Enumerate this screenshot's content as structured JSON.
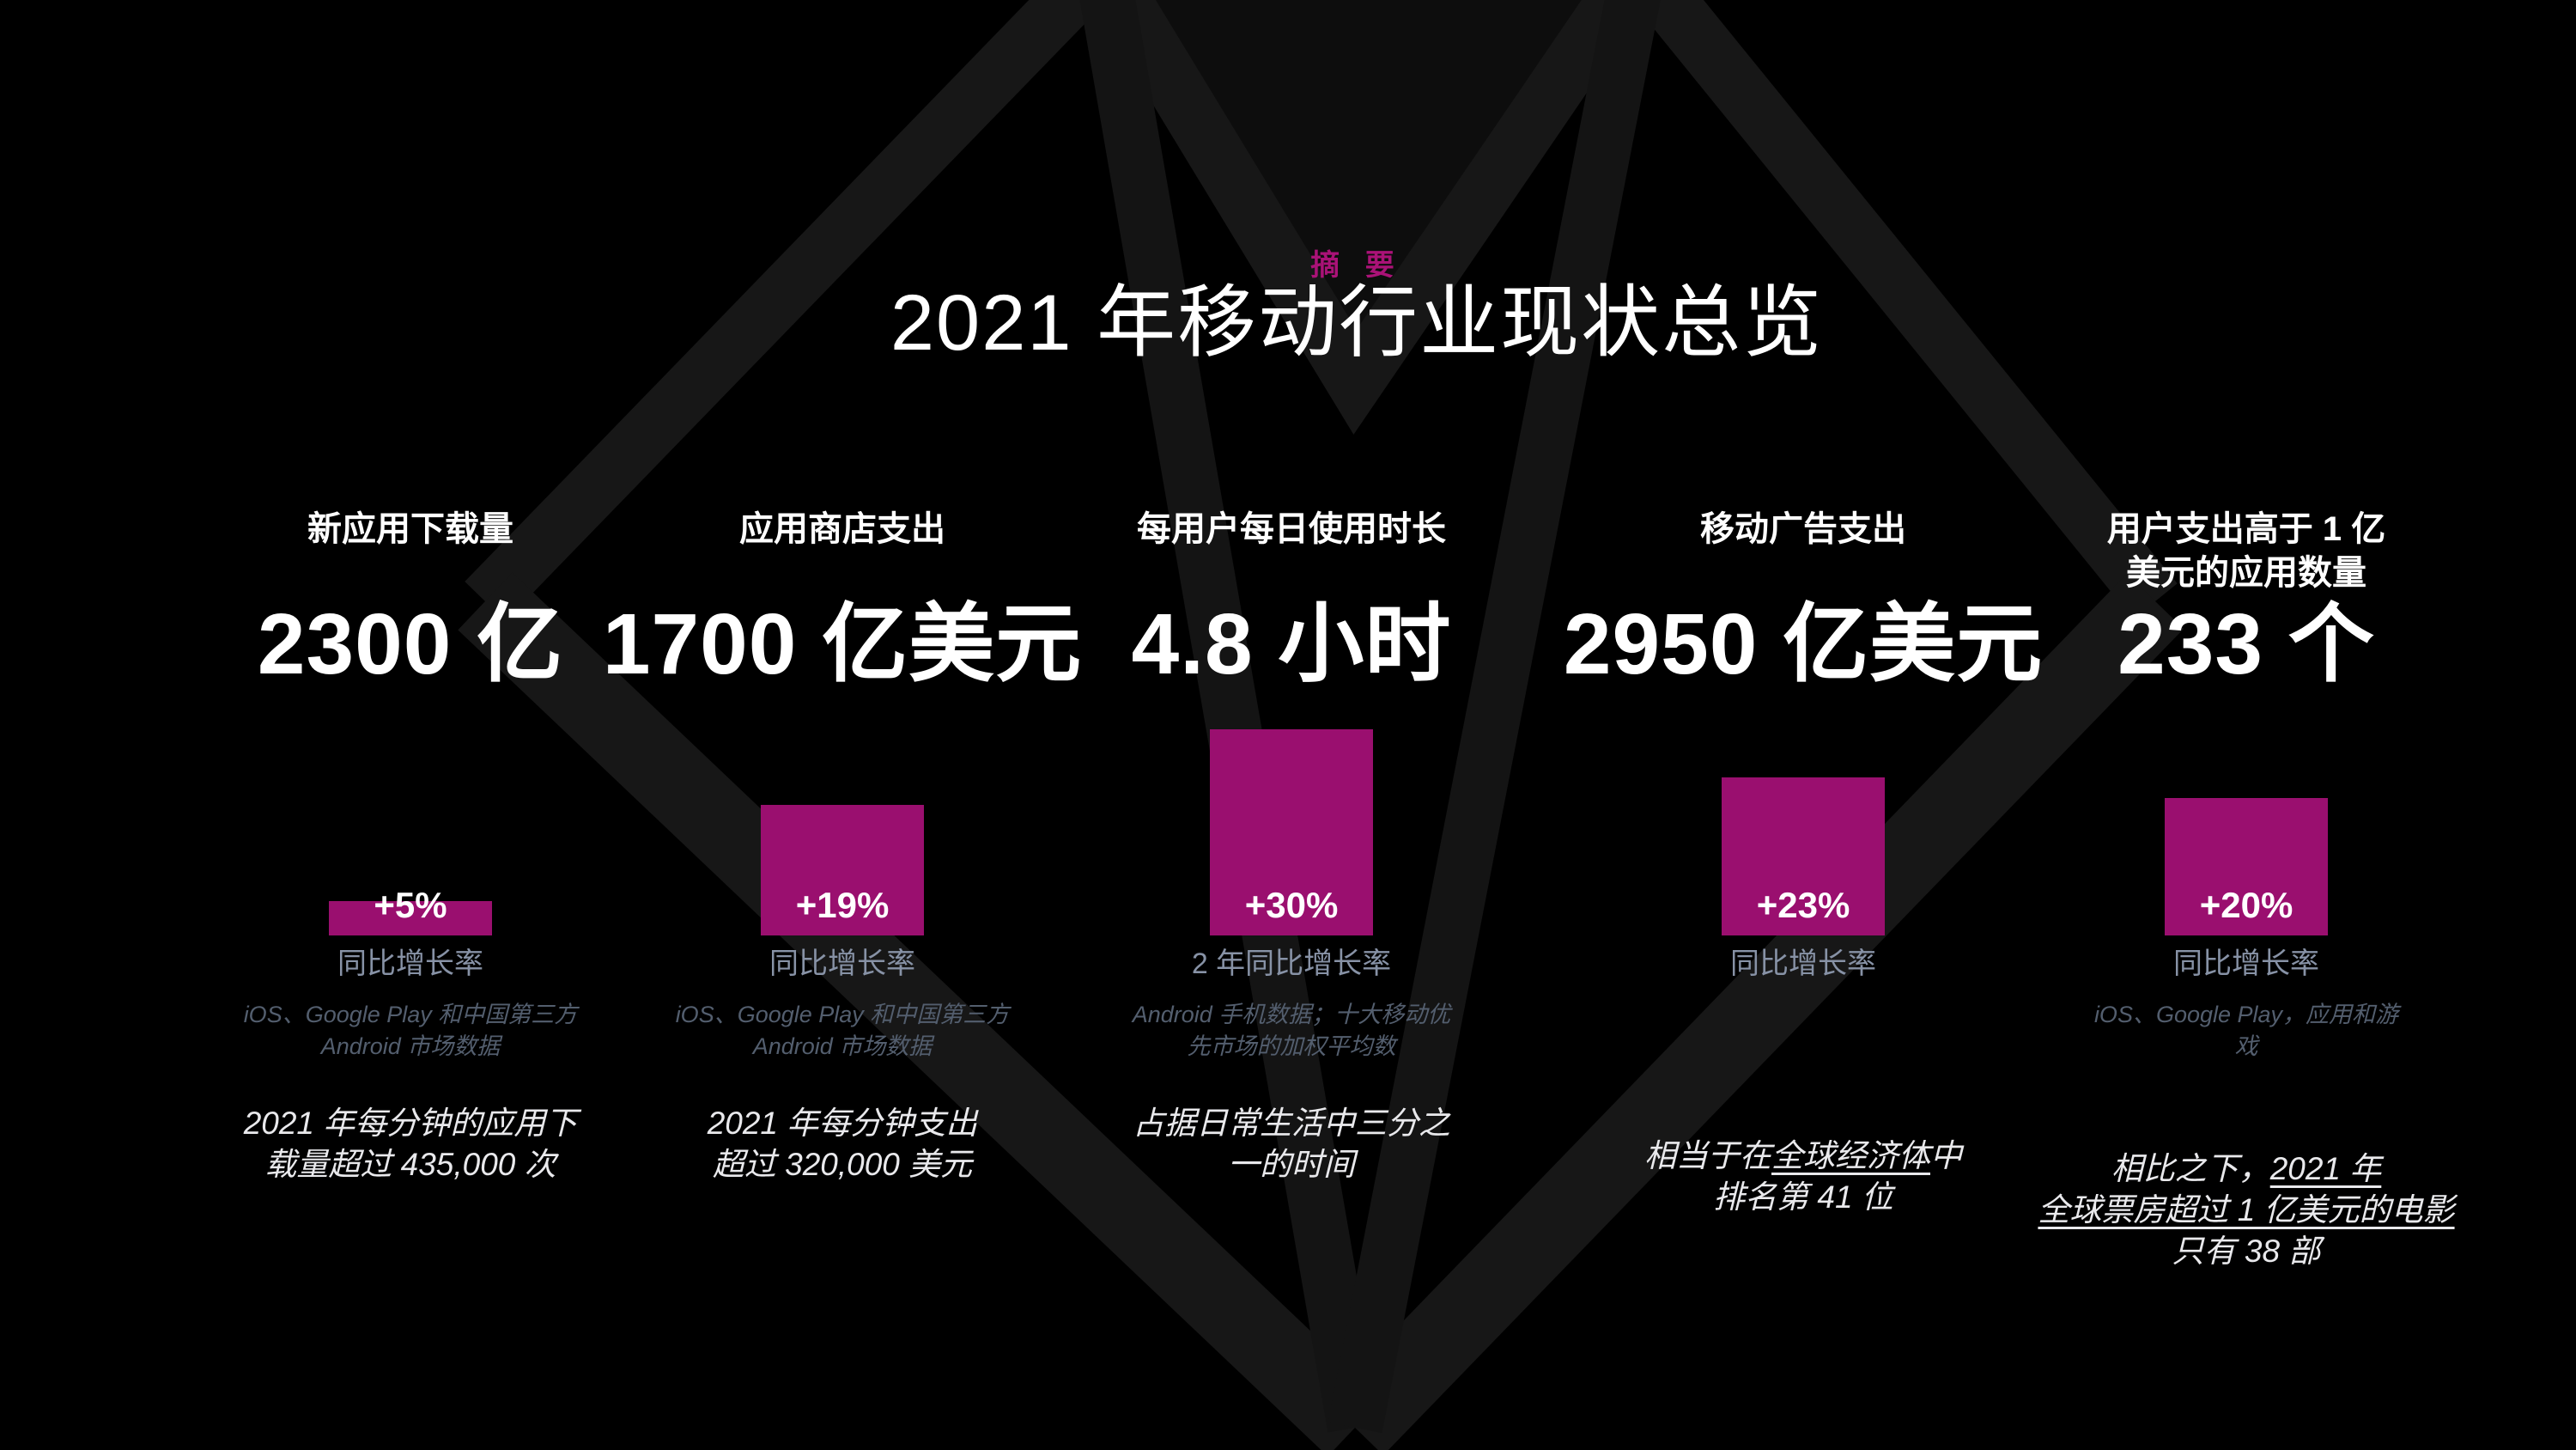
{
  "slide": {
    "eyebrow": "摘 要",
    "title": "2021 年移动行业现状总览",
    "accent_color": "#aa1277",
    "bar_color": "#9a0f6f",
    "caption_color": "#8792a6",
    "source_color": "#535e6e",
    "background_color": "#000000",
    "watermark": "gem-outline"
  },
  "columns": [
    {
      "header": "新应用下载量",
      "value": "2300 亿",
      "growth_label": "+5%",
      "growth_pct": 5,
      "bar_caption": "同比增长率",
      "source": "iOS、Google Play 和中国第三方\nAndroid 市场数据",
      "note_segments": [
        {
          "t": "2021 年每分钟的应用下\n载量超过 435,000 次",
          "u": false
        }
      ]
    },
    {
      "header": "应用商店支出",
      "value": "1700 亿美元",
      "growth_label": "+19%",
      "growth_pct": 19,
      "bar_caption": "同比增长率",
      "source": "iOS、Google Play 和中国第三方\nAndroid 市场数据",
      "note_segments": [
        {
          "t": "2021 年每分钟支出\n超过 320,000 美元",
          "u": false
        }
      ]
    },
    {
      "header": "每用户每日使用时长",
      "value": "4.8 小时",
      "growth_label": "+30%",
      "growth_pct": 30,
      "bar_caption": "2 年同比增长率",
      "source": "Android 手机数据；十大移动优\n先市场的加权平均数",
      "note_segments": [
        {
          "t": "占据日常生活中三分之\n一的时间",
          "u": false
        }
      ]
    },
    {
      "header": "移动广告支出",
      "value": "2950 亿美元",
      "growth_label": "+23%",
      "growth_pct": 23,
      "bar_caption": "同比增长率",
      "source": "",
      "note_segments": [
        {
          "t": "相当于在",
          "u": false
        },
        {
          "t": "全球经济体",
          "u": true
        },
        {
          "t": "中\n排名第 41 位",
          "u": false
        }
      ]
    },
    {
      "header": "用户支出高于 1 亿\n美元的应用数量",
      "value": "233 个",
      "growth_label": "+20%",
      "growth_pct": 20,
      "bar_caption": "同比增长率",
      "source": "iOS、Google Play，应用和游\n戏",
      "note_segments": [
        {
          "t": "相比之下，",
          "u": false
        },
        {
          "t": "2021 年",
          "u": true
        },
        {
          "t": "\n",
          "u": false
        },
        {
          "t": "全球票房超过 1 亿美元的电影",
          "u": true
        },
        {
          "t": "\n只有 38 部",
          "u": false
        }
      ]
    }
  ],
  "chart_data": {
    "type": "bar",
    "title": "2021 年移动行业现状总览",
    "subtitle": "摘 要",
    "categories": [
      "新应用下载量",
      "应用商店支出",
      "每用户每日使用时长",
      "移动广告支出",
      "用户支出高于 1 亿美元的应用数量"
    ],
    "series": [
      {
        "name": "同比增长率 (%)",
        "values": [
          5,
          19,
          30,
          23,
          20
        ]
      }
    ],
    "value_labels": [
      "+5%",
      "+19%",
      "+30%",
      "+23%",
      "+20%"
    ],
    "growth_period_labels": [
      "同比增长率",
      "同比增长率",
      "2 年同比增长率",
      "同比增长率",
      "同比增长率"
    ],
    "headline_values": [
      "2300 亿",
      "1700 亿美元",
      "4.8 小时",
      "2950 亿美元",
      "233 个"
    ],
    "bar_color": "#9a0f6f",
    "ylim": [
      0,
      30
    ],
    "grid": false,
    "legend": "none",
    "xlabel": "",
    "ylabel": ""
  }
}
